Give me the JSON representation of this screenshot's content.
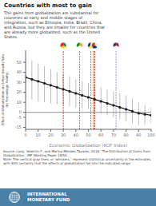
{
  "chart_data": {
    "type": "line",
    "title": "Countries with most to gain",
    "subtitle": "The gains from globalization are substantial for\ncountries at early and middle stages of\nintegration, such as Ethiopia, India, Brazil, China,\nand Russia, but they are smaller for countries that\nare already more globalized, such as the United\nStates.",
    "xlabel": "Economic Globalization (KOF Index)",
    "ylabel": "Effect of Globalization on 5-Year Growth Rate\n(in Percentage Points)",
    "x": [
      0,
      5,
      10,
      15,
      20,
      25,
      30,
      35,
      40,
      45,
      50,
      55,
      60,
      65,
      70,
      75,
      80,
      85,
      90,
      95,
      100
    ],
    "values": [
      35,
      33,
      31,
      29,
      27,
      25,
      23,
      21,
      19,
      17,
      15,
      13,
      11,
      9,
      7,
      5,
      3,
      1,
      -1,
      -2,
      -3
    ],
    "color": "#222222",
    "marker": "circle",
    "error_bars": {
      "lower": [
        15,
        13,
        11,
        10,
        9,
        8,
        7,
        6,
        5,
        4,
        3,
        1,
        -1,
        -3,
        -5,
        -7,
        -9,
        -11,
        -13,
        -12,
        -11
      ],
      "upper": [
        55,
        52,
        49,
        46,
        43,
        40,
        38,
        36,
        33,
        31,
        29,
        27,
        25,
        23,
        21,
        19,
        17,
        14,
        10,
        7,
        5
      ],
      "color": "#bbbbbb"
    },
    "xlim": [
      0,
      100
    ],
    "ylim": [
      -17,
      62
    ],
    "xticks": [
      0,
      10,
      20,
      30,
      40,
      50,
      60,
      70,
      80,
      90,
      100
    ],
    "yticks": [
      -15,
      -5,
      0,
      10,
      20,
      30,
      40,
      50
    ],
    "grid": false,
    "hlines": [
      {
        "y": 0,
        "color": "#777777"
      }
    ],
    "vlines": [
      {
        "x": 30,
        "color": "#cc0000",
        "flag_colors": [
          "#009A44",
          "#FCDD09",
          "#EF2118"
        ]
      },
      {
        "x": 43,
        "color": "#228B22",
        "flag_colors": [
          "#FF9933",
          "#FFFFFF",
          "#138808"
        ]
      },
      {
        "x": 52,
        "color": "#228B22",
        "flag_colors": [
          "#009C3B",
          "#FFDF00",
          "#002776"
        ]
      },
      {
        "x": 54,
        "color": "#cc3300",
        "flag_colors": [
          "#DE2910",
          "#FFDE00"
        ]
      },
      {
        "x": 55,
        "color": "#8B0000",
        "flag_colors": [
          "#FFFFFF",
          "#0039A6",
          "#D52B1E"
        ]
      },
      {
        "x": 72,
        "color": "#9370DB",
        "flag_colors": [
          "#B22234",
          "#FFFFFF",
          "#3C3B6E"
        ]
      }
    ],
    "source": [
      "Source: Lang, Valentin F., and Marina Mendes Tavares. 2018. 'The Distribution of Gains from",
      "Globalization.' IMF Working Paper 18/54.",
      "Note: The vertical gray lines, or 'whiskers,' represent statistical uncertainty in the estimates,",
      "with 90% certainty that the effects of globalization fall into the indicated range."
    ],
    "logo": [
      "INTERNATIONAL",
      "MONETARY FUND"
    ],
    "logo_color": "#4a7fa5"
  }
}
